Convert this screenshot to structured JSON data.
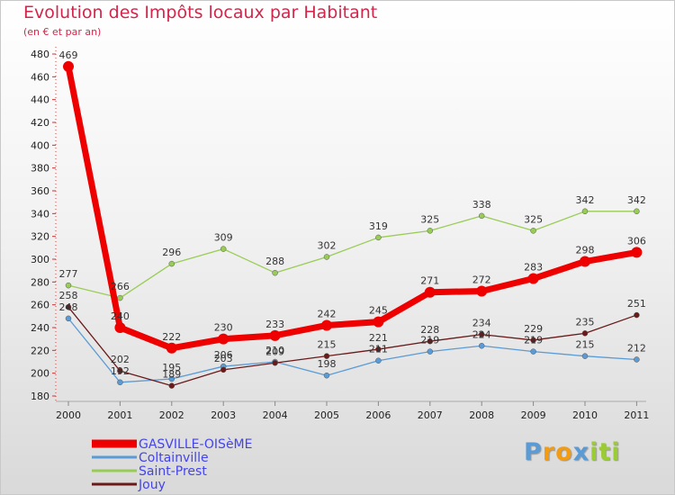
{
  "header": {
    "title": "Evolution des Impôts locaux par Habitant",
    "subtitle": "(en € et par an)"
  },
  "logo": {
    "text": "Proxiti",
    "letter_colors": [
      "#5b9bd5",
      "#f39c12",
      "#f39c12",
      "#5b9bd5",
      "#9acd32",
      "#9acd32",
      "#9acd32"
    ]
  },
  "chart_data": {
    "type": "line",
    "title": "Evolution des Impôts locaux par Habitant",
    "subtitle": "(en € et par an)",
    "xlabel": "",
    "ylabel": "",
    "x": [
      "2000",
      "2001",
      "2002",
      "2003",
      "2004",
      "2005",
      "2006",
      "2007",
      "2008",
      "2009",
      "2010",
      "2011"
    ],
    "ylim": [
      180,
      480
    ],
    "yticks": [
      "180",
      "200",
      "220",
      "240",
      "260",
      "280",
      "300",
      "320",
      "340",
      "360",
      "380",
      "400",
      "420",
      "440",
      "460",
      "480"
    ],
    "grid": false,
    "legend_position": "bottom-left",
    "series": [
      {
        "name": "GASVILLE-OISèME",
        "color": "#ee0000",
        "text_color": "#4444ee",
        "values": [
          469,
          240,
          222,
          230,
          233,
          242,
          245,
          271,
          272,
          283,
          298,
          306
        ],
        "labels": [
          "469",
          "240",
          "222",
          "230",
          "233",
          "242",
          "245",
          "271",
          "272",
          "283",
          "298",
          "306"
        ]
      },
      {
        "name": "Coltainville",
        "color": "#5a9bd5",
        "text_color": "#4444ee",
        "values": [
          248,
          192,
          195,
          206,
          210,
          198,
          211,
          219,
          224,
          219,
          215,
          212
        ],
        "labels": [
          "248",
          "192",
          "195",
          "206",
          "210",
          "198",
          "211",
          "219",
          "224",
          "219",
          "215",
          "212"
        ]
      },
      {
        "name": "Saint-Prest",
        "color": "#99cc55",
        "text_color": "#4444ee",
        "values": [
          277,
          266,
          296,
          309,
          288,
          302,
          319,
          325,
          338,
          325,
          342,
          342
        ],
        "labels": [
          "277",
          "266",
          "296",
          "309",
          "288",
          "302",
          "319",
          "325",
          "338",
          "325",
          "342",
          "342"
        ]
      },
      {
        "name": "Jouy",
        "color": "#6b1a1a",
        "text_color": "#4444ee",
        "values": [
          258,
          202,
          189,
          203,
          209,
          215,
          221,
          228,
          234,
          229,
          235,
          251
        ],
        "labels": [
          "258",
          "202",
          "189",
          "203",
          "209",
          "215",
          "221",
          "228",
          "234",
          "229",
          "235",
          "251"
        ]
      }
    ]
  }
}
